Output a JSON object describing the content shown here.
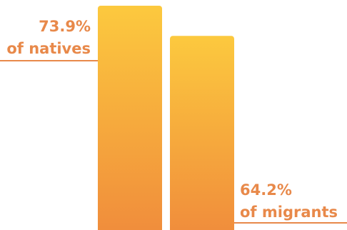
{
  "chart_data": {
    "type": "bar",
    "categories": [
      "natives",
      "migrants"
    ],
    "values": [
      73.9,
      64.2
    ],
    "labels": [
      {
        "value": "73.9%",
        "caption": "of natives"
      },
      {
        "value": "64.2%",
        "caption": "of migrants"
      }
    ],
    "title": "",
    "xlabel": "",
    "ylabel": ""
  },
  "colors": {
    "bar_top": "#fcc93e",
    "bar_bottom": "#f08c3c",
    "label": "#e8894a",
    "rule": "#e8894a"
  }
}
